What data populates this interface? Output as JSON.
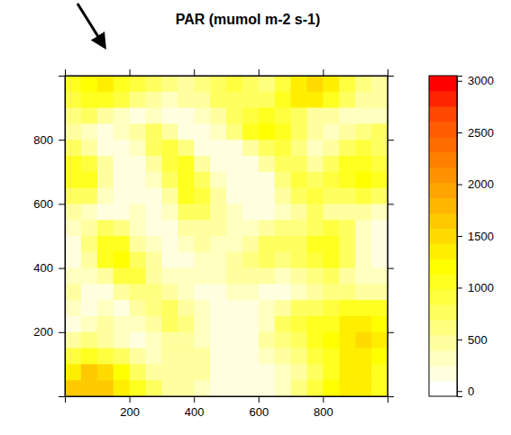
{
  "chart_data": {
    "type": "heatmap",
    "title": "PAR (mumol m-2 s-1)",
    "xlim": [
      0,
      1000
    ],
    "ylim": [
      0,
      1000
    ],
    "xticks": [
      200,
      400,
      600,
      800
    ],
    "yticks": [
      200,
      400,
      600,
      800
    ],
    "cells": [
      [
        1100,
        1200,
        1300,
        1100,
        900,
        700,
        600,
        500,
        600,
        800,
        900,
        700,
        600,
        900,
        1300,
        1500,
        1300,
        900,
        600,
        500
      ],
      [
        900,
        1000,
        1100,
        900,
        600,
        400,
        300,
        400,
        500,
        700,
        800,
        700,
        800,
        1100,
        1400,
        1300,
        1000,
        700,
        500,
        400
      ],
      [
        600,
        700,
        500,
        300,
        200,
        300,
        200,
        200,
        300,
        500,
        700,
        900,
        1000,
        900,
        700,
        500,
        400,
        300,
        300,
        300
      ],
      [
        400,
        300,
        200,
        300,
        500,
        700,
        400,
        200,
        100,
        300,
        600,
        1000,
        1200,
        1100,
        800,
        400,
        300,
        400,
        600,
        700
      ],
      [
        700,
        500,
        200,
        100,
        300,
        800,
        900,
        600,
        200,
        100,
        200,
        500,
        800,
        900,
        600,
        300,
        500,
        800,
        900,
        800
      ],
      [
        1000,
        900,
        400,
        100,
        100,
        500,
        900,
        1000,
        500,
        200,
        100,
        200,
        400,
        700,
        700,
        500,
        700,
        1000,
        1100,
        900
      ],
      [
        1100,
        1000,
        500,
        200,
        100,
        300,
        800,
        1100,
        800,
        300,
        100,
        100,
        200,
        600,
        900,
        800,
        900,
        1100,
        1200,
        1000
      ],
      [
        800,
        700,
        300,
        100,
        100,
        200,
        500,
        1000,
        900,
        400,
        200,
        100,
        100,
        400,
        800,
        900,
        700,
        800,
        900,
        700
      ],
      [
        400,
        300,
        200,
        200,
        300,
        200,
        300,
        700,
        800,
        500,
        300,
        200,
        200,
        300,
        500,
        700,
        500,
        400,
        400,
        300
      ],
      [
        300,
        500,
        800,
        600,
        300,
        200,
        200,
        400,
        500,
        400,
        300,
        300,
        500,
        600,
        600,
        800,
        900,
        700,
        300,
        200
      ],
      [
        200,
        600,
        1100,
        1000,
        500,
        300,
        200,
        300,
        400,
        300,
        300,
        500,
        700,
        700,
        800,
        1000,
        1100,
        800,
        300,
        200
      ],
      [
        200,
        400,
        1000,
        1200,
        800,
        400,
        200,
        200,
        300,
        300,
        400,
        600,
        700,
        600,
        700,
        900,
        1000,
        700,
        300,
        200
      ],
      [
        300,
        300,
        500,
        900,
        900,
        500,
        300,
        300,
        300,
        300,
        400,
        500,
        400,
        300,
        400,
        600,
        700,
        500,
        300,
        300
      ],
      [
        400,
        200,
        200,
        400,
        600,
        600,
        400,
        300,
        200,
        200,
        300,
        300,
        200,
        200,
        300,
        500,
        600,
        600,
        500,
        500
      ],
      [
        300,
        200,
        300,
        200,
        400,
        600,
        700,
        500,
        300,
        200,
        200,
        200,
        300,
        500,
        700,
        800,
        900,
        1000,
        1100,
        1000
      ],
      [
        200,
        300,
        500,
        300,
        300,
        500,
        700,
        600,
        300,
        200,
        100,
        100,
        300,
        700,
        900,
        1000,
        1100,
        1300,
        1400,
        1200
      ],
      [
        400,
        600,
        500,
        300,
        200,
        300,
        500,
        400,
        300,
        200,
        100,
        200,
        400,
        600,
        800,
        1000,
        1200,
        1400,
        1500,
        1300
      ],
      [
        900,
        1100,
        900,
        700,
        400,
        300,
        400,
        500,
        400,
        200,
        100,
        200,
        300,
        400,
        600,
        900,
        1100,
        1300,
        1400,
        1200
      ],
      [
        1400,
        1600,
        1500,
        1200,
        800,
        500,
        400,
        500,
        400,
        200,
        200,
        100,
        200,
        300,
        500,
        800,
        1100,
        1300,
        1300,
        1100
      ],
      [
        1600,
        1700,
        1600,
        1400,
        1100,
        700,
        500,
        500,
        300,
        200,
        100,
        100,
        200,
        300,
        600,
        900,
        1200,
        1400,
        1300,
        1100
      ]
    ],
    "colorbar": {
      "range": [
        -50,
        3050
      ],
      "ticks": [
        0,
        500,
        1000,
        1500,
        2000,
        2500,
        3000
      ],
      "colors": [
        "#FFFFFF",
        "#FFFFE0",
        "#FFFFBF",
        "#FFFF9F",
        "#FFFF80",
        "#FFFF60",
        "#FFFF40",
        "#FFFF20",
        "#FFFF00",
        "#FFEE00",
        "#FFDB00",
        "#FFC900",
        "#FFB600",
        "#FFA400",
        "#FF9200",
        "#FF8000",
        "#FF6D00",
        "#FF5B00",
        "#FF4900",
        "#FF2400",
        "#FF0000"
      ]
    }
  }
}
